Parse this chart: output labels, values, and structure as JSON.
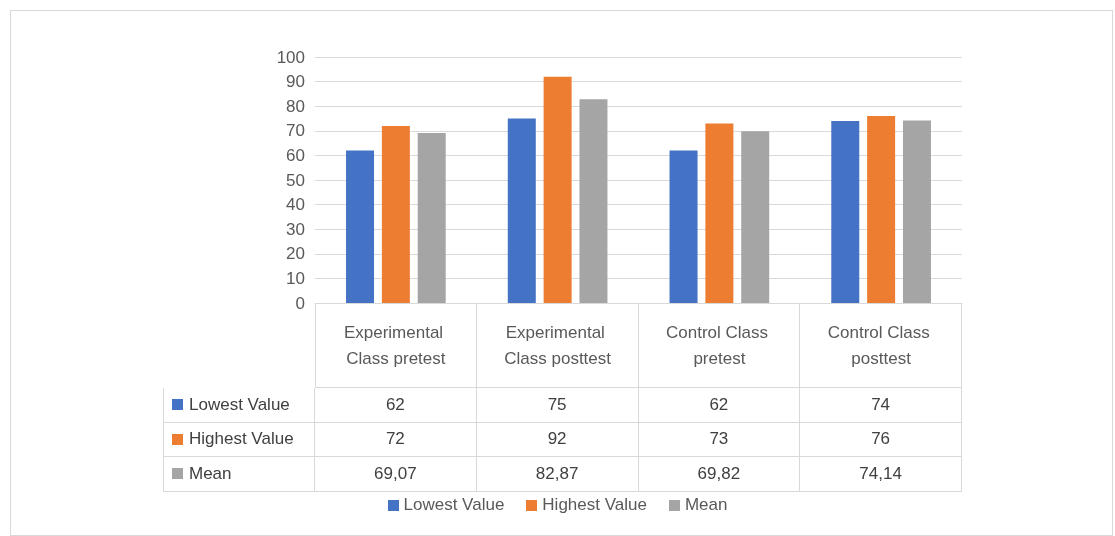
{
  "chart_data": {
    "type": "bar",
    "categories": [
      "Experimental Class pretest",
      "Experimental Class posttest",
      "Control Class pretest",
      "Control Class posttest"
    ],
    "series": [
      {
        "name": "Lowest Value",
        "color": "#4472c4",
        "values": [
          62,
          75,
          62,
          74
        ],
        "value_labels": [
          "62",
          "75",
          "62",
          "74"
        ]
      },
      {
        "name": "Highest Value",
        "color": "#ed7d31",
        "values": [
          72,
          92,
          73,
          76
        ],
        "value_labels": [
          "72",
          "92",
          "73",
          "76"
        ]
      },
      {
        "name": "Mean",
        "color": "#a5a5a5",
        "values": [
          69.07,
          82.87,
          69.82,
          74.14
        ],
        "value_labels": [
          "69,07",
          "82,87",
          "69,82",
          "74,14"
        ]
      }
    ],
    "ylim": [
      0,
      100
    ],
    "yticks": [
      0,
      10,
      20,
      30,
      40,
      50,
      60,
      70,
      80,
      90,
      100
    ],
    "grid": "y",
    "legend": "bottom"
  }
}
